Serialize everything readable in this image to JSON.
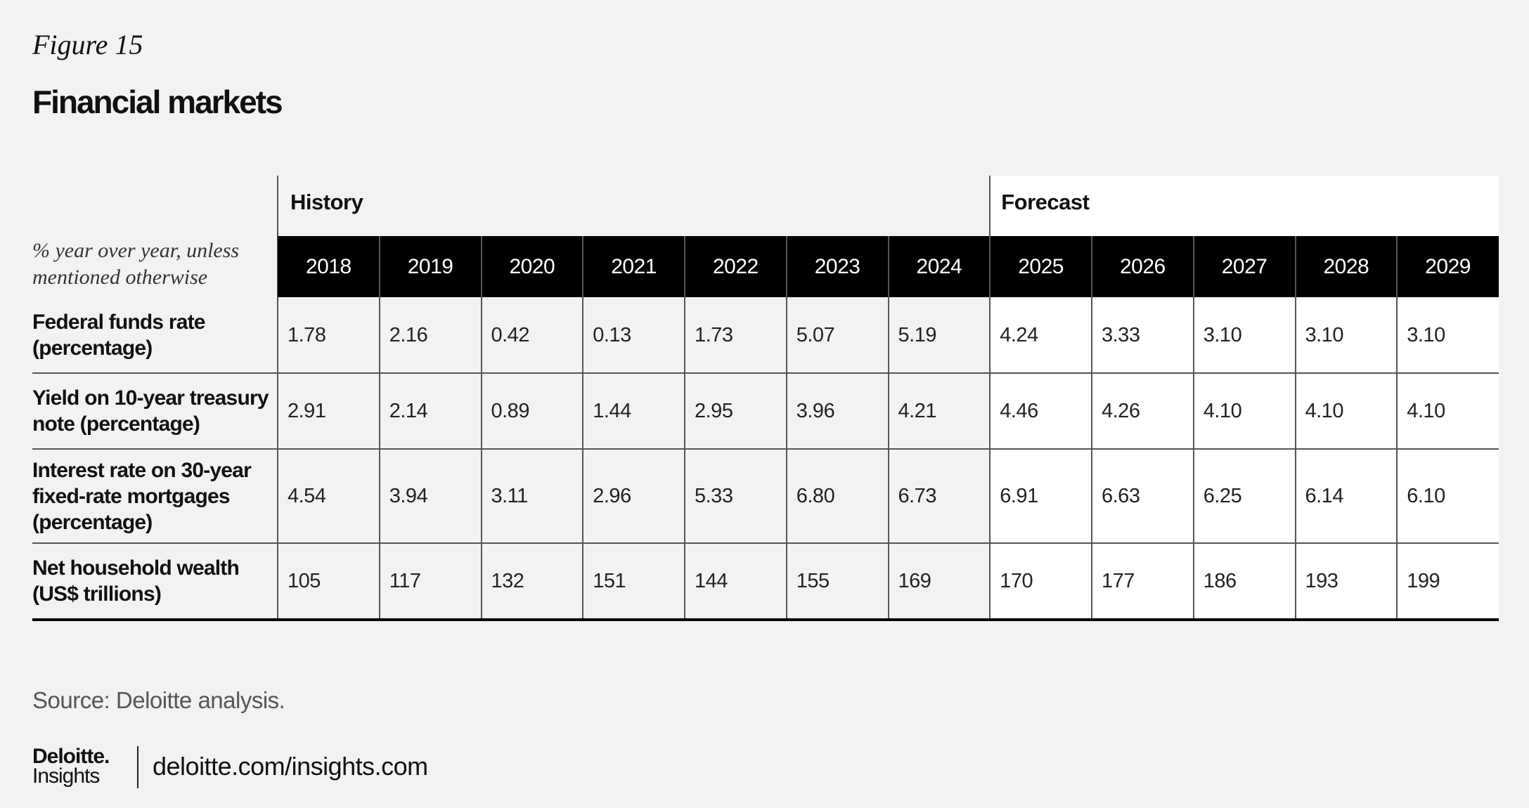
{
  "figure_label": "Figure 15",
  "title": "Financial markets",
  "table": {
    "history_label": "History",
    "forecast_label": "Forecast",
    "unit_note": "% year over year, unless mentioned otherwise",
    "years": [
      "2018",
      "2019",
      "2020",
      "2021",
      "2022",
      "2023",
      "2024",
      "2025",
      "2026",
      "2027",
      "2028",
      "2029"
    ],
    "rows": [
      {
        "label": "Federal funds rate (percentage)",
        "values": [
          "1.78",
          "2.16",
          "0.42",
          "0.13",
          "1.73",
          "5.07",
          "5.19",
          "4.24",
          "3.33",
          "3.10",
          "3.10",
          "3.10"
        ]
      },
      {
        "label": "Yield on 10-year treasury note (percentage)",
        "values": [
          "2.91",
          "2.14",
          "0.89",
          "1.44",
          "2.95",
          "3.96",
          "4.21",
          "4.46",
          "4.26",
          "4.10",
          "4.10",
          "4.10"
        ]
      },
      {
        "label": "Interest rate on 30-year fixed-rate mortgages (percentage)",
        "values": [
          "4.54",
          "3.94",
          "3.11",
          "2.96",
          "5.33",
          "6.80",
          "6.73",
          "6.91",
          "6.63",
          "6.25",
          "6.14",
          "6.10"
        ]
      },
      {
        "label": "Net household wealth (US$ trillions)",
        "values": [
          "105",
          "117",
          "132",
          "151",
          "144",
          "155",
          "169",
          "170",
          "177",
          "186",
          "193",
          "199"
        ]
      }
    ]
  },
  "source": "Source: Deloitte analysis.",
  "footer": {
    "brand": "Deloitte.",
    "brand_sub": "Insights",
    "url": "deloitte.com/insights.com"
  }
}
